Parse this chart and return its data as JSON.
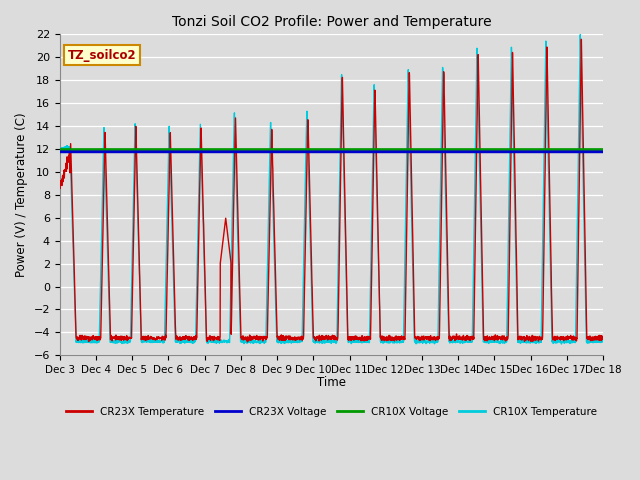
{
  "title": "Tonzi Soil CO2 Profile: Power and Temperature",
  "ylabel": "Power (V) / Temperature (C)",
  "xlabel": "Time",
  "ylim": [
    -6,
    22
  ],
  "yticks": [
    -6,
    -4,
    -2,
    0,
    2,
    4,
    6,
    8,
    10,
    12,
    14,
    16,
    18,
    20,
    22
  ],
  "bg_color": "#dcdcdc",
  "cr23x_voltage_value": 11.75,
  "cr10x_voltage_value": 11.95,
  "cr23x_voltage_color": "#0000cc",
  "cr10x_voltage_color": "#009900",
  "cr23x_temp_color": "#cc0000",
  "cr10x_temp_color": "#00ccdd",
  "annotation_text": "TZ_soilco2",
  "annotation_bg": "#ffffcc",
  "annotation_border": "#cc8800",
  "legend_labels": [
    "CR23X Temperature",
    "CR23X Voltage",
    "CR10X Voltage",
    "CR10X Temperature"
  ],
  "xtick_labels": [
    "Dec 3",
    "Dec 4",
    "Dec 5",
    "Dec 6",
    "Dec 7",
    "Dec 8",
    "Dec 9",
    "Dec 10",
    "Dec 11",
    "Dec 12",
    "Dec 13",
    "Dec 14",
    "Dec 15",
    "Dec 16",
    "Dec 17",
    "Dec 18"
  ],
  "figsize": [
    6.4,
    4.8
  ],
  "dpi": 100
}
